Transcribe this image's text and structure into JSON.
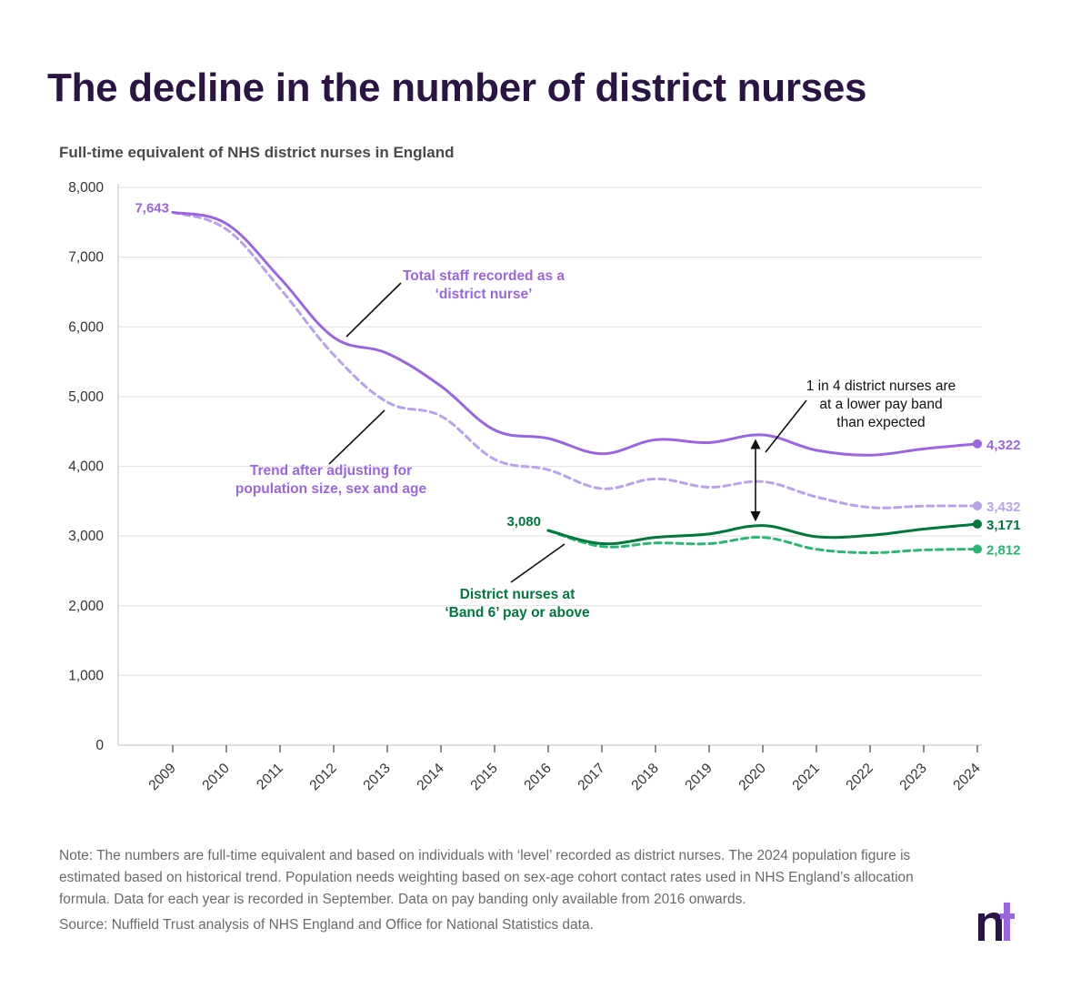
{
  "header": {
    "title": "The decline in the number of district nurses"
  },
  "chart_data": {
    "type": "line",
    "title": "The decline in the number of district nurses",
    "subtitle": "Full-time equivalent of NHS district nurses in England",
    "xlabel": "",
    "ylabel": "",
    "ylim": [
      0,
      8000
    ],
    "yticks": [
      0,
      1000,
      2000,
      3000,
      4000,
      5000,
      6000,
      7000,
      8000
    ],
    "ytick_labels": [
      "0",
      "1,000",
      "2,000",
      "3,000",
      "4,000",
      "5,000",
      "6,000",
      "7,000",
      "8,000"
    ],
    "x": [
      "2009",
      "2010",
      "2011",
      "2012",
      "2013",
      "2014",
      "2015",
      "2016",
      "2017",
      "2018",
      "2019",
      "2020",
      "2021",
      "2022",
      "2023",
      "2024"
    ],
    "grid": true,
    "series": [
      {
        "name": "Total staff recorded as a ‘district nurse’",
        "style": "solid",
        "color": "#9966e0",
        "values": [
          7643,
          7480,
          6700,
          5850,
          5620,
          5150,
          4520,
          4400,
          4180,
          4380,
          4340,
          4450,
          4230,
          4160,
          4250,
          4322
        ],
        "start_label": "7,643",
        "end_label": "4,322"
      },
      {
        "name": "Trend after adjusting for population size, sex and age",
        "style": "dashed",
        "color": "#b9a2ea",
        "values": [
          7643,
          7400,
          6550,
          5600,
          4920,
          4720,
          4100,
          3950,
          3680,
          3820,
          3700,
          3780,
          3560,
          3410,
          3430,
          3432
        ],
        "end_label": "3,432"
      },
      {
        "name": "District nurses at ‘Band 6’ pay or above",
        "style": "solid",
        "color": "#00773c",
        "values": [
          null,
          null,
          null,
          null,
          null,
          null,
          null,
          3080,
          2890,
          2980,
          3030,
          3150,
          2990,
          3010,
          3100,
          3171
        ],
        "start_label": "3,080",
        "end_label": "3,171"
      },
      {
        "name": "District nurses at ‘Band 6’ pay or above, adjusted",
        "style": "dashed",
        "color": "#2bb673",
        "values": [
          null,
          null,
          null,
          null,
          null,
          null,
          null,
          3080,
          2850,
          2900,
          2890,
          2980,
          2810,
          2760,
          2800,
          2812
        ],
        "end_label": "2,812"
      }
    ],
    "annotations": {
      "total_staff": [
        "Total staff recorded as a",
        "‘district nurse’"
      ],
      "trend": [
        "Trend after adjusting for",
        "population size, sex and age"
      ],
      "band6": [
        "District nurses at",
        "‘Band 6’ pay or above"
      ],
      "gap": [
        "1 in 4 district nurses are",
        "at a lower pay band",
        "than expected"
      ]
    }
  },
  "footer": {
    "note": "Note: The numbers are full-time equivalent and based on individuals with ‘level’ recorded as district nurses. The 2024 population figure is estimated based on historical trend. Population needs weighting based on sex-age cohort contact rates used in NHS England’s allocation formula. Data for each year is recorded in September. Data on pay banding only available from 2016 onwards.",
    "source": "Source: Nuffield Trust analysis of NHS England and Office for National Statistics data."
  },
  "colors": {
    "title": "#2a1443",
    "purple": "#9966e0",
    "light_purple": "#b9a2ea",
    "green": "#00773c",
    "light_green": "#2bb673",
    "grid": "#e6e6e6",
    "logo_dark": "#2a1443",
    "logo_light": "#9966e0"
  }
}
